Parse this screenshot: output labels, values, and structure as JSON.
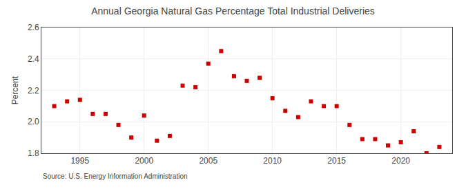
{
  "chart_data": {
    "type": "scatter",
    "title": "Annual Georgia Natural Gas Percentage Total Industrial Deliveries",
    "ylabel": "Percent",
    "annotations": [
      "Source: U.S. Energy Information Administration"
    ],
    "x": [
      1993,
      1994,
      1995,
      1996,
      1997,
      1998,
      1999,
      2000,
      2001,
      2002,
      2003,
      2004,
      2005,
      2006,
      2007,
      2008,
      2009,
      2010,
      2011,
      2012,
      2013,
      2014,
      2015,
      2016,
      2017,
      2018,
      2019,
      2020,
      2021,
      2022,
      2023
    ],
    "values": [
      2.1,
      2.13,
      2.14,
      2.05,
      2.05,
      1.98,
      1.9,
      2.04,
      1.88,
      1.91,
      2.23,
      2.22,
      2.37,
      2.45,
      2.29,
      2.26,
      2.28,
      2.15,
      2.07,
      2.03,
      2.13,
      2.1,
      2.1,
      1.98,
      1.89,
      1.89,
      1.85,
      1.87,
      1.94,
      1.8,
      1.84
    ],
    "color": "#cc0000",
    "marker": "square",
    "xlim": [
      1992,
      2024
    ],
    "xticks": [
      1995,
      2000,
      2005,
      2010,
      2015,
      2020
    ],
    "ylim": [
      1.8,
      2.6
    ],
    "yticks": [
      1.8,
      {
        "value": 2.0,
        "label": "2.0"
      },
      2.2,
      2.4,
      2.6
    ],
    "grid": true
  }
}
